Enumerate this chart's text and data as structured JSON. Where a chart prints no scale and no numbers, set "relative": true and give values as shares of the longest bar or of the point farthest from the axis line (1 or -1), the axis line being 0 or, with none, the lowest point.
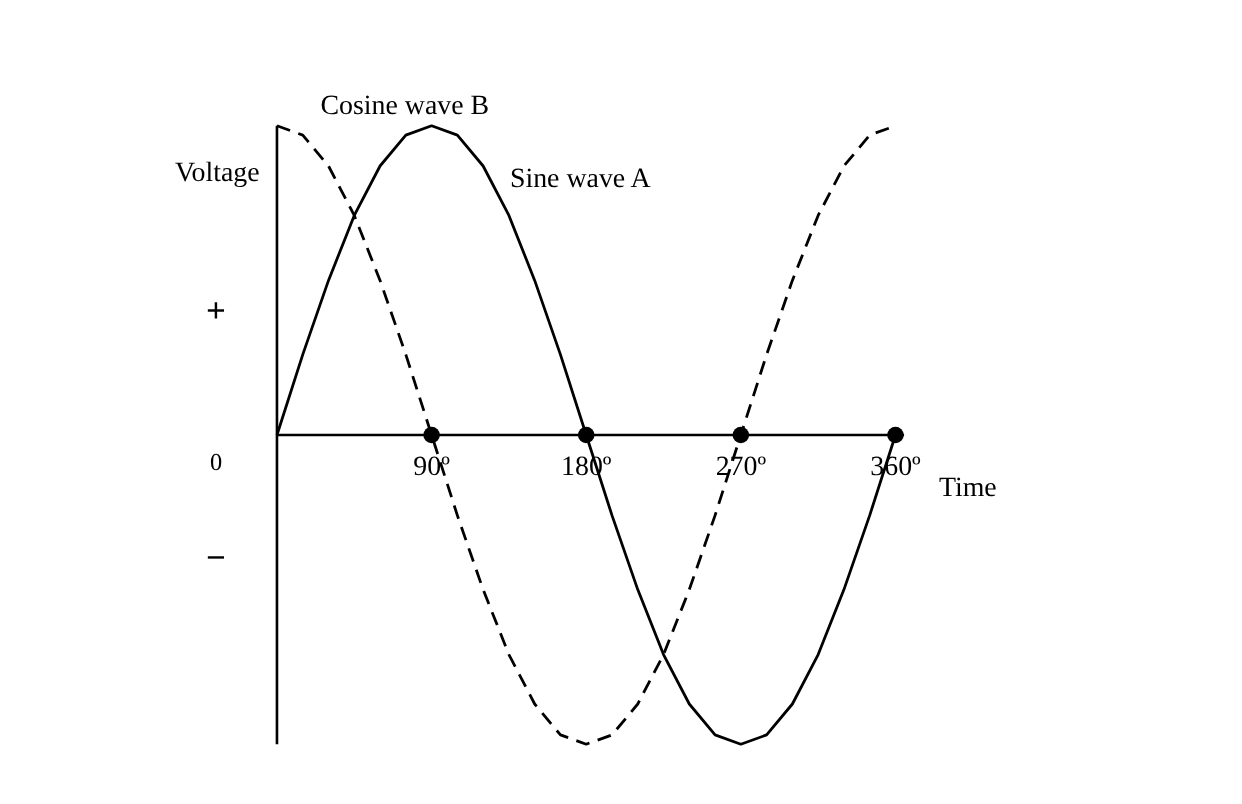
{
  "chart_data": {
    "type": "line",
    "relative": true,
    "ylabel": "Voltage",
    "xlabel": "Time",
    "xlim": [
      0,
      365
    ],
    "xticks": [
      {
        "value": 90,
        "label": "90º"
      },
      {
        "value": 180,
        "label": "180º"
      },
      {
        "value": 270,
        "label": "270º"
      },
      {
        "value": 360,
        "label": "360º"
      }
    ],
    "annotations": [
      "+",
      "0",
      "−"
    ],
    "series": [
      {
        "name": "Sine wave A",
        "color": "#000000",
        "line_style": "solid",
        "x": [
          0,
          15,
          30,
          45,
          60,
          75,
          90,
          105,
          120,
          135,
          150,
          165,
          180,
          195,
          210,
          225,
          240,
          255,
          270,
          285,
          300,
          315,
          330,
          345,
          360
        ],
        "values": [
          0,
          0.26,
          0.5,
          0.71,
          0.87,
          0.97,
          1,
          0.97,
          0.87,
          0.71,
          0.5,
          0.26,
          0,
          -0.26,
          -0.5,
          -0.71,
          -0.87,
          -0.97,
          -1,
          -0.97,
          -0.87,
          -0.71,
          -0.5,
          -0.26,
          0
        ]
      },
      {
        "name": "Cosine wave B",
        "color": "#000000",
        "line_style": "dashed",
        "x": [
          0,
          15,
          30,
          45,
          60,
          75,
          90,
          105,
          120,
          135,
          150,
          165,
          180,
          195,
          210,
          225,
          240,
          255,
          270,
          285,
          300,
          315,
          330,
          345,
          360
        ],
        "values": [
          1,
          0.97,
          0.87,
          0.71,
          0.5,
          0.26,
          0,
          -0.26,
          -0.5,
          -0.71,
          -0.87,
          -0.97,
          -1,
          -0.97,
          -0.87,
          -0.71,
          -0.5,
          -0.26,
          0,
          0.26,
          0.5,
          0.71,
          0.87,
          0.97,
          1
        ]
      },
      {
        "type": "scatter",
        "color": "#000000",
        "marker": "circle",
        "x": [
          90,
          180,
          270,
          360
        ],
        "values": [
          0,
          0,
          0,
          0
        ]
      }
    ]
  }
}
